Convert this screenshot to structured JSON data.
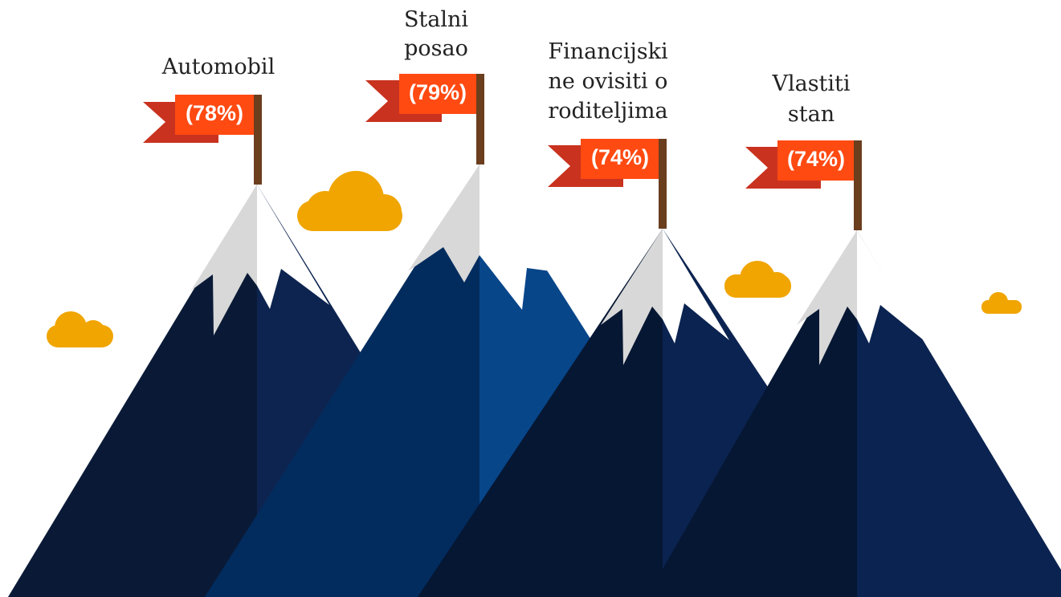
{
  "items": [
    {
      "label": [
        "Automobil"
      ],
      "value_label": "(78%)"
    },
    {
      "label": [
        "Stalni",
        "posao"
      ],
      "value_label": "(79%)"
    },
    {
      "label": [
        "Financijski",
        "ne ovisiti o",
        "roditeljima"
      ],
      "value_label": "(74%)"
    },
    {
      "label": [
        "Vlastiti",
        "stan"
      ],
      "value_label": "(74%)"
    }
  ]
}
